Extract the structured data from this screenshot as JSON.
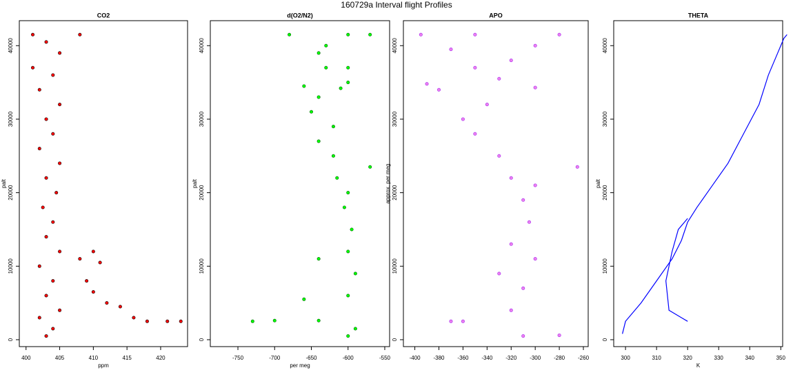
{
  "title": "160729a   Interval flight Profiles",
  "chart_data": [
    {
      "type": "scatter",
      "title": "CO2",
      "x_label": "ppm",
      "y_label": "palt",
      "xlim": [
        399,
        424
      ],
      "ylim": [
        -940,
        43400
      ],
      "xticks": [
        400,
        405,
        410,
        415,
        420
      ],
      "yticks": [
        0,
        10000,
        20000,
        30000,
        40000
      ],
      "series": [
        {
          "color": "#ff0000",
          "edge_color": "#000000",
          "x": [
            403,
            404,
            402,
            405,
            403,
            404,
            402,
            405,
            403,
            404,
            402.5,
            404.5,
            403,
            405,
            402,
            404,
            403,
            405,
            402,
            404,
            401,
            405,
            403,
            401,
            408,
            410,
            408,
            411,
            409,
            410,
            412,
            414,
            416,
            418,
            421,
            423
          ],
          "y": [
            500,
            1500,
            3000,
            4000,
            6000,
            8000,
            10000,
            12000,
            14000,
            16000,
            18000,
            20000,
            22000,
            24000,
            26000,
            28000,
            30000,
            32000,
            34000,
            36000,
            37000,
            39000,
            40500,
            41500,
            41500,
            12000,
            11000,
            10500,
            8000,
            6500,
            5000,
            4500,
            3000,
            2500,
            2500,
            2500
          ]
        }
      ]
    },
    {
      "type": "scatter",
      "title": "d(O2/N2)",
      "x_label": "per meg",
      "y_label": "palt",
      "xlim": [
        -787.6,
        -543.4
      ],
      "ylim": [
        -940,
        43400
      ],
      "xticks": [
        -750,
        -700,
        -650,
        -600,
        -550
      ],
      "yticks": [
        0,
        10000,
        20000,
        30000,
        40000
      ],
      "series": [
        {
          "color": "#00ff00",
          "edge_color": "#006400",
          "x": [
            -600,
            -590,
            -730,
            -700,
            -640,
            -660,
            -600,
            -590,
            -640,
            -600,
            -595,
            -605,
            -600,
            -615,
            -570,
            -620,
            -640,
            -620,
            -650,
            -640,
            -610,
            -660,
            -600,
            -630,
            -600,
            -640,
            -630,
            -600,
            -570,
            -680
          ],
          "y": [
            500,
            1500,
            2500,
            2600,
            2600,
            5500,
            6000,
            9000,
            11000,
            12000,
            15000,
            18000,
            20000,
            22000,
            23500,
            25000,
            27000,
            29000,
            31000,
            33000,
            34200,
            34500,
            35000,
            37000,
            37000,
            39000,
            40000,
            41500,
            41500,
            41500
          ]
        }
      ]
    },
    {
      "type": "scatter",
      "title": "APO",
      "y_label": "approx. per meg",
      "xlim": [
        -409.5,
        -256
      ],
      "ylim": [
        -940,
        43400
      ],
      "xticks": [
        -400,
        -380,
        -360,
        -340,
        -320,
        -300,
        -280,
        -260
      ],
      "yticks": [
        0,
        10000,
        20000,
        30000,
        40000
      ],
      "series": [
        {
          "color": "#ee82ee",
          "edge_color": "#a020f0",
          "x": [
            -310,
            -280,
            -360,
            -370,
            -320,
            -310,
            -330,
            -300,
            -320,
            -305,
            -310,
            -300,
            -320,
            -265,
            -330,
            -350,
            -360,
            -340,
            -380,
            -300,
            -330,
            -390,
            -350,
            -320,
            -370,
            -300,
            -350,
            -280,
            -395
          ],
          "y": [
            500,
            600,
            2500,
            2500,
            4000,
            7000,
            9000,
            11000,
            13000,
            16000,
            19000,
            21000,
            22000,
            23500,
            25000,
            28000,
            30000,
            32000,
            34000,
            34300,
            35500,
            34800,
            37000,
            38000,
            39500,
            40000,
            41500,
            41500,
            41500
          ]
        }
      ]
    },
    {
      "type": "line",
      "title": "THETA",
      "x_label": "K",
      "y_label": "palt",
      "xlim": [
        296.2,
        350.6
      ],
      "ylim": [
        -940,
        43400
      ],
      "xticks": [
        300,
        310,
        320,
        330,
        340,
        350
      ],
      "yticks": [
        0,
        10000,
        20000,
        30000,
        40000
      ],
      "series": [
        {
          "color": "#0000ff",
          "x": [
            299,
            300,
            305,
            310,
            315,
            318,
            320,
            323,
            328,
            333,
            338,
            343,
            346,
            349,
            351,
            352
          ],
          "y": [
            800,
            2500,
            5000,
            8000,
            11000,
            13500,
            16000,
            18000,
            21000,
            24000,
            28000,
            32000,
            36000,
            39000,
            41000,
            41500
          ]
        },
        {
          "color": "#0000ff",
          "x": [
            320,
            318,
            314,
            313,
            315,
            317,
            320
          ],
          "y": [
            2500,
            3000,
            4000,
            8000,
            12000,
            15000,
            16500
          ]
        }
      ]
    }
  ]
}
